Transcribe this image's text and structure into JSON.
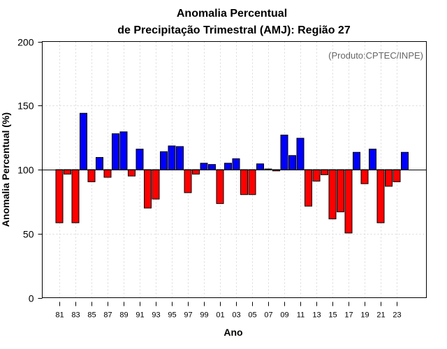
{
  "chart_data": {
    "type": "bar",
    "title": "Anomalia Percentual",
    "subtitle": "de Precipitação Trimestral (AMJ): Região 27",
    "xlabel": "Ano",
    "ylabel": "Anomalia Percentual (%)",
    "credit": "(Produto:CPTEC/INPE)",
    "ylim": [
      0,
      200
    ],
    "yticks": [
      0,
      50,
      100,
      150,
      200
    ],
    "baseline": 100,
    "grid": true,
    "colors": {
      "above": "#0000ff",
      "below": "#ff0000",
      "edge": "#000000",
      "grid": "#d9d9d9"
    },
    "categories": [
      "1981",
      "1982",
      "1983",
      "1984",
      "1985",
      "1986",
      "1987",
      "1988",
      "1989",
      "1990",
      "1991",
      "1992",
      "1993",
      "1994",
      "1995",
      "1996",
      "1997",
      "1998",
      "1999",
      "2000",
      "2001",
      "2002",
      "2003",
      "2004",
      "2005",
      "2006",
      "2007",
      "2008",
      "2009",
      "2010",
      "2011",
      "2012",
      "2013",
      "2014",
      "2015",
      "2016",
      "2017",
      "2018",
      "2019",
      "2020",
      "2021",
      "2022",
      "2023",
      "2024"
    ],
    "x_tick_labels": [
      "81",
      "83",
      "85",
      "87",
      "89",
      "91",
      "93",
      "95",
      "97",
      "99",
      "01",
      "03",
      "05",
      "07",
      "09",
      "11",
      "13",
      "15",
      "17",
      "19",
      "21",
      "23"
    ],
    "values": [
      58.5,
      96.5,
      58.5,
      144,
      90.5,
      109.5,
      94,
      128,
      129.5,
      95,
      116,
      70,
      77,
      114,
      118.5,
      118,
      82,
      96.5,
      105,
      104,
      73.5,
      105,
      108.5,
      80.5,
      80.5,
      104.5,
      100.5,
      99,
      127,
      111,
      124.5,
      71.5,
      91,
      96,
      61.5,
      67,
      50.5,
      113.5,
      89,
      116,
      58.5,
      87,
      90.5,
      113.5
    ]
  }
}
